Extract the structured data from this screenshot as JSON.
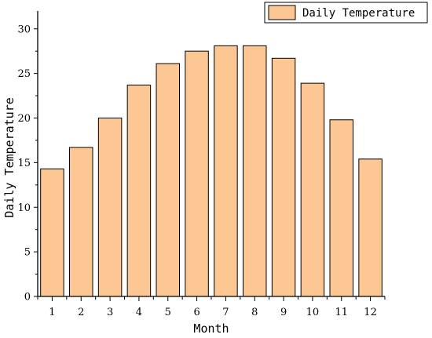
{
  "chart_data": {
    "type": "bar",
    "categories": [
      "1",
      "2",
      "3",
      "4",
      "5",
      "6",
      "7",
      "8",
      "9",
      "10",
      "11",
      "12"
    ],
    "series": [
      {
        "name": "Daily Temperature",
        "values": [
          14.3,
          16.7,
          20.0,
          23.7,
          26.1,
          27.5,
          28.1,
          28.1,
          26.7,
          23.9,
          19.8,
          15.4
        ],
        "color": "#fcc793"
      }
    ],
    "xlabel": "Month",
    "ylabel": "Daily Temperature",
    "ylim": [
      0,
      32
    ],
    "yticks": [
      0,
      5,
      10,
      15,
      20,
      25,
      30
    ],
    "grid": false,
    "legend_position": "top-right"
  }
}
